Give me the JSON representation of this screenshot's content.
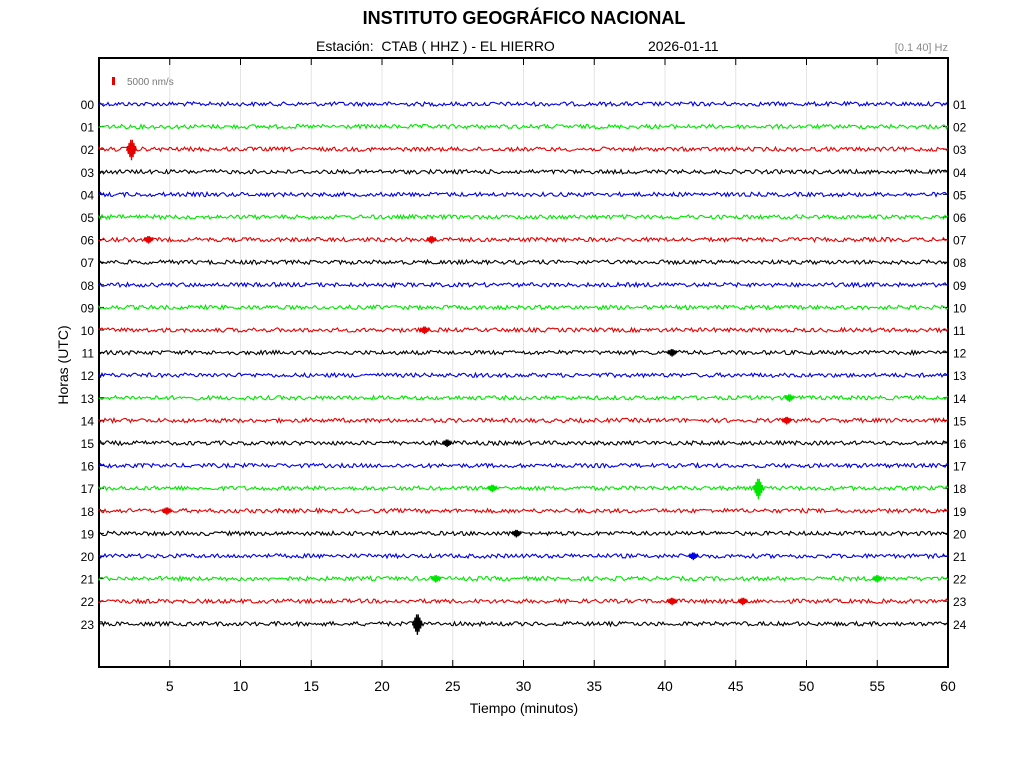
{
  "header": {
    "title": "INSTITUTO GEOGRÁFICO NACIONAL",
    "station": "Estación:  CTAB ( HHZ ) - EL HIERRO",
    "date": "2026-01-11",
    "filter": "[0.1 40] Hz"
  },
  "chart_data": {
    "type": "line",
    "title": "INSTITUTO GEOGRÁFICO NACIONAL",
    "xlabel": "Tiempo (minutos)",
    "ylabel": "Horas (UTC)",
    "xlim": [
      0,
      60
    ],
    "x_ticks": [
      5,
      10,
      15,
      20,
      25,
      30,
      35,
      40,
      45,
      50,
      55,
      60
    ],
    "left_tick_labels": [
      "00",
      "01",
      "02",
      "03",
      "04",
      "05",
      "06",
      "07",
      "08",
      "09",
      "10",
      "11",
      "12",
      "13",
      "14",
      "15",
      "16",
      "17",
      "18",
      "19",
      "20",
      "21",
      "22",
      "23"
    ],
    "right_tick_labels": [
      "01",
      "02",
      "03",
      "04",
      "05",
      "06",
      "07",
      "08",
      "09",
      "10",
      "11",
      "12",
      "13",
      "14",
      "15",
      "16",
      "17",
      "18",
      "19",
      "20",
      "21",
      "22",
      "23",
      "24"
    ],
    "scale_label": "5000 nm/s",
    "trace_colors": [
      "#0000e6",
      "#00e600",
      "#e60000",
      "#000000"
    ],
    "grid": "vertical",
    "series": [
      {
        "hour": "00",
        "color": "#0000e6",
        "events": []
      },
      {
        "hour": "01",
        "color": "#00e600",
        "events": []
      },
      {
        "hour": "02",
        "color": "#e60000",
        "events": [
          {
            "minute": 2.3,
            "amplitude": "large"
          }
        ]
      },
      {
        "hour": "03",
        "color": "#000000",
        "events": []
      },
      {
        "hour": "04",
        "color": "#0000e6",
        "events": []
      },
      {
        "hour": "05",
        "color": "#00e600",
        "events": []
      },
      {
        "hour": "06",
        "color": "#e60000",
        "events": [
          {
            "minute": 3.5,
            "amplitude": "small"
          },
          {
            "minute": 23.5,
            "amplitude": "small"
          }
        ]
      },
      {
        "hour": "07",
        "color": "#000000",
        "events": []
      },
      {
        "hour": "08",
        "color": "#0000e6",
        "events": []
      },
      {
        "hour": "09",
        "color": "#00e600",
        "events": []
      },
      {
        "hour": "10",
        "color": "#e60000",
        "events": [
          {
            "minute": 23.0,
            "amplitude": "small"
          }
        ]
      },
      {
        "hour": "11",
        "color": "#000000",
        "events": [
          {
            "minute": 40.5,
            "amplitude": "small"
          }
        ]
      },
      {
        "hour": "12",
        "color": "#0000e6",
        "events": []
      },
      {
        "hour": "13",
        "color": "#00e600",
        "events": [
          {
            "minute": 48.8,
            "amplitude": "small"
          }
        ]
      },
      {
        "hour": "14",
        "color": "#e60000",
        "events": [
          {
            "minute": 48.6,
            "amplitude": "small"
          }
        ]
      },
      {
        "hour": "15",
        "color": "#000000",
        "events": [
          {
            "minute": 24.6,
            "amplitude": "small"
          }
        ]
      },
      {
        "hour": "16",
        "color": "#0000e6",
        "events": []
      },
      {
        "hour": "17",
        "color": "#00e600",
        "events": [
          {
            "minute": 27.8,
            "amplitude": "small"
          },
          {
            "minute": 46.6,
            "amplitude": "large"
          }
        ]
      },
      {
        "hour": "18",
        "color": "#e60000",
        "events": [
          {
            "minute": 4.8,
            "amplitude": "small"
          }
        ]
      },
      {
        "hour": "19",
        "color": "#000000",
        "events": [
          {
            "minute": 29.5,
            "amplitude": "small"
          }
        ]
      },
      {
        "hour": "20",
        "color": "#0000e6",
        "events": [
          {
            "minute": 42.0,
            "amplitude": "small"
          }
        ]
      },
      {
        "hour": "21",
        "color": "#00e600",
        "events": [
          {
            "minute": 23.8,
            "amplitude": "small"
          },
          {
            "minute": 55.0,
            "amplitude": "small"
          }
        ]
      },
      {
        "hour": "22",
        "color": "#e60000",
        "events": [
          {
            "minute": 40.5,
            "amplitude": "small"
          },
          {
            "minute": 45.5,
            "amplitude": "small"
          }
        ]
      },
      {
        "hour": "23",
        "color": "#000000",
        "events": [
          {
            "minute": 22.5,
            "amplitude": "large"
          }
        ]
      }
    ]
  }
}
